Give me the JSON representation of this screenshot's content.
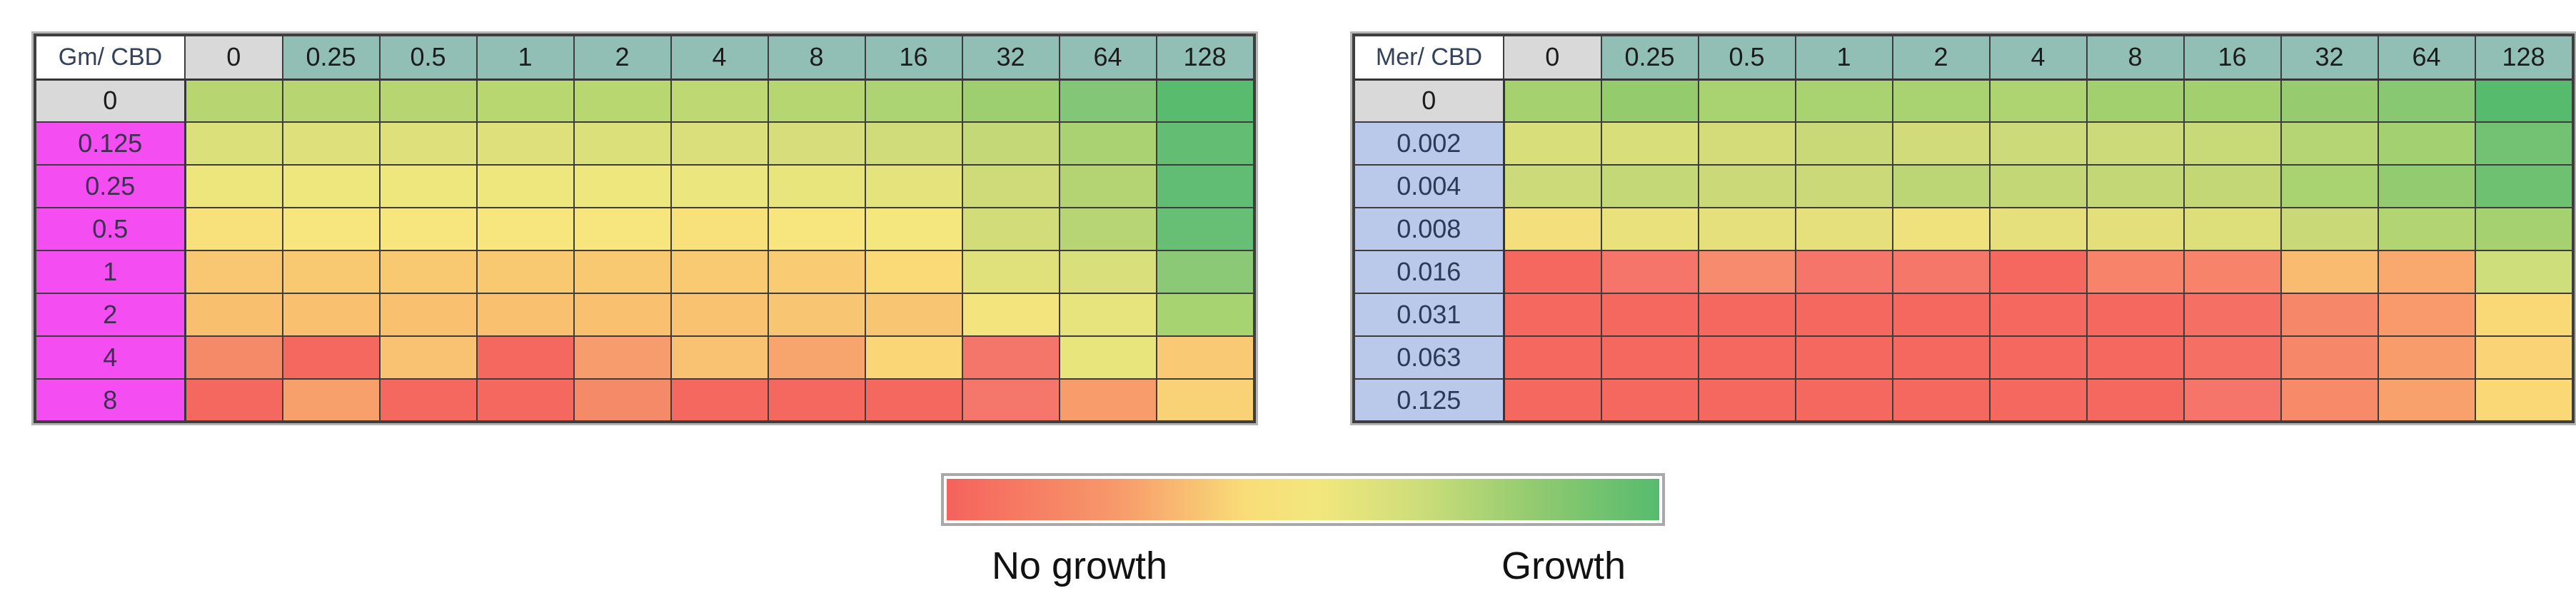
{
  "page": {
    "background": "#ffffff"
  },
  "palette": {
    "header_teal": "#91bfb5",
    "header_gray": "#d9d9d9",
    "corner_white": "#ffffff",
    "row_magenta": "#f44ef2",
    "row_blue": "#bac9e9",
    "grid_border": "#3d3d3d",
    "outer_gray": "#b5b5b5",
    "legend_border_gray": "#a9a9a9",
    "header_text": "#1c1c1c",
    "corner_text": "#34415c"
  },
  "legend": {
    "no_growth_label": "No growth",
    "growth_label": "Growth",
    "gradient_stops": [
      "#f5625c 0%",
      "#f79a6b 24%",
      "#f9dd77 42%",
      "#f2e77c 52%",
      "#cede7a 66%",
      "#94cb70 82%",
      "#56bb6e 100%"
    ]
  },
  "chart_data": [
    {
      "type": "heatmap",
      "corner_label": "Gm/ CBD",
      "columns": [
        "0",
        "0.25",
        "0.5",
        "1",
        "2",
        "4",
        "8",
        "16",
        "32",
        "64",
        "128"
      ],
      "rows": [
        "0",
        "0.125",
        "0.25",
        "0.5",
        "1",
        "2",
        "4",
        "8"
      ],
      "row_header_colors": [
        "#d9d9d9",
        "#f44ef2",
        "#f44ef2",
        "#f44ef2",
        "#f44ef2",
        "#f44ef2",
        "#f44ef2",
        "#f44ef2"
      ],
      "row_header_text_colors": [
        "#1c1c1c",
        "#3b3150",
        "#3b3150",
        "#3b3150",
        "#3b3150",
        "#3b3150",
        "#3b3150",
        "#3b3150"
      ],
      "color_encoding": {
        "red": "No growth",
        "green": "Growth"
      },
      "cells": [
        [
          "#b7d671",
          "#b7d671",
          "#b7d671",
          "#b8d771",
          "#b8d771",
          "#bed973",
          "#b6d672",
          "#add472",
          "#9dcf70",
          "#84c677",
          "#58bb6e"
        ],
        [
          "#dce07a",
          "#dee17b",
          "#dee17b",
          "#dee17b",
          "#dce07b",
          "#dadf7b",
          "#d6dd7a",
          "#d0db79",
          "#c5d877",
          "#aad272",
          "#63be74"
        ],
        [
          "#ece67d",
          "#eee77e",
          "#eee77e",
          "#eee77e",
          "#eee77e",
          "#ece67e",
          "#e9e57d",
          "#e5e37c",
          "#cfdb79",
          "#b4d473",
          "#61bd73"
        ],
        [
          "#f8e17b",
          "#f7e67d",
          "#f7e67d",
          "#f7e67d",
          "#f7e67d",
          "#f8e07b",
          "#f7e67d",
          "#f4e77e",
          "#d2dc79",
          "#b7d574",
          "#66bf75"
        ],
        [
          "#f9c671",
          "#f9c972",
          "#f9c972",
          "#f9c972",
          "#f9c972",
          "#f9ca72",
          "#f9cb73",
          "#fad977",
          "#e0e17b",
          "#d8df7b",
          "#8cc977"
        ],
        [
          "#f8bf6f",
          "#f8c06f",
          "#f8c06f",
          "#f8c06f",
          "#f8c06f",
          "#f8c271",
          "#f8c572",
          "#f8c673",
          "#f4e47d",
          "#e8e47d",
          "#a8d371"
        ],
        [
          "#f58a68",
          "#f4685f",
          "#f9c272",
          "#f4685f",
          "#f79c6c",
          "#f9c273",
          "#f8a56d",
          "#fad676",
          "#f4756a",
          "#e9e57d",
          "#f9ca73"
        ],
        [
          "#f4685f",
          "#f8a06c",
          "#f4685f",
          "#f4685f",
          "#f58a68",
          "#f4685f",
          "#f4685f",
          "#f4685f",
          "#f5766a",
          "#f89c6c",
          "#f9d275"
        ]
      ]
    },
    {
      "type": "heatmap",
      "corner_label": "Mer/ CBD",
      "columns": [
        "0",
        "0.25",
        "0.5",
        "1",
        "2",
        "4",
        "8",
        "16",
        "32",
        "64",
        "128"
      ],
      "rows": [
        "0",
        "0.002",
        "0.004",
        "0.008",
        "0.016",
        "0.031",
        "0.063",
        "0.125"
      ],
      "row_header_colors": [
        "#d9d9d9",
        "#bac9e9",
        "#bac9e9",
        "#bac9e9",
        "#bac9e9",
        "#bac9e9",
        "#bac9e9",
        "#bac9e9"
      ],
      "row_header_text_colors": [
        "#1c1c1c",
        "#2c3a57",
        "#2c3a57",
        "#2c3a57",
        "#2c3a57",
        "#2c3a57",
        "#2c3a57",
        "#2c3a57"
      ],
      "color_encoding": {
        "red": "No growth",
        "green": "Growth"
      },
      "cells": [
        [
          "#a6d16f",
          "#94cb6d",
          "#a9d370",
          "#a9d370",
          "#a9d370",
          "#add471",
          "#a3d06f",
          "#a3d06f",
          "#96cc6f",
          "#89c873",
          "#57bb6e"
        ],
        [
          "#d8de7a",
          "#d8de7a",
          "#d3dc79",
          "#c9d977",
          "#d1db79",
          "#cdda79",
          "#cdda79",
          "#c8d978",
          "#b5d473",
          "#a3d071",
          "#73c273"
        ],
        [
          "#cdda79",
          "#c5d877",
          "#cbd978",
          "#cbd978",
          "#bdd675",
          "#c3d776",
          "#c3d776",
          "#c3d776",
          "#a9d271",
          "#93cb70",
          "#6fc172"
        ],
        [
          "#f3df7b",
          "#e9e17b",
          "#e5e07b",
          "#e5e07b",
          "#efe27c",
          "#e5e07b",
          "#e3e07b",
          "#dddf7a",
          "#cad978",
          "#b2d473",
          "#a6d171"
        ],
        [
          "#f4685f",
          "#f5756a",
          "#f78b6d",
          "#f5756a",
          "#f5776a",
          "#f4685f",
          "#f7836a",
          "#f7836a",
          "#f9bb70",
          "#f9a96e",
          "#cede7b"
        ],
        [
          "#f4685f",
          "#f4685f",
          "#f4685f",
          "#f4685f",
          "#f4685f",
          "#f4685f",
          "#f4685f",
          "#f56f65",
          "#f78769",
          "#f99a6c",
          "#f9d976"
        ],
        [
          "#f4685f",
          "#f4685f",
          "#f4685f",
          "#f4685f",
          "#f4685f",
          "#f4685f",
          "#f4685f",
          "#f56f65",
          "#f78769",
          "#f99c6c",
          "#f9d375"
        ],
        [
          "#f4685f",
          "#f4685f",
          "#f4685f",
          "#f4685f",
          "#f4685f",
          "#f4685f",
          "#f4685f",
          "#f5756a",
          "#f78a69",
          "#f9a16d",
          "#f9d875"
        ]
      ]
    }
  ]
}
